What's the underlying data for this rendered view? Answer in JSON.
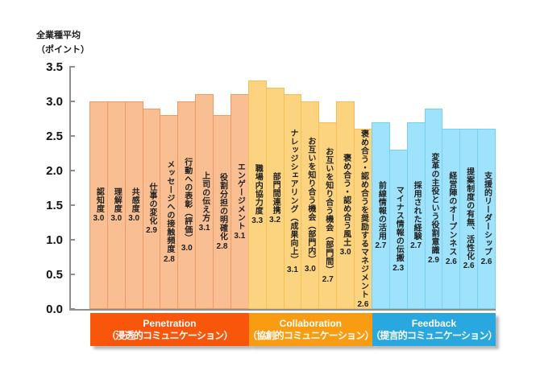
{
  "axis": {
    "title_line1": "全業種平均",
    "title_line2": "（ポイント）"
  },
  "chart_data": {
    "type": "bar",
    "ylabel": "全業種平均（ポイント）",
    "ylim": [
      0.0,
      3.5
    ],
    "yticks": [
      3.5,
      3.0,
      2.5,
      2.0,
      1.5,
      1.0,
      0.5,
      0.0
    ],
    "grid": false,
    "legend": false,
    "groups": [
      {
        "name_en": "Penetration",
        "name_ja": "（浸透的コミュニケーション）",
        "band_color": "#f8570b",
        "bar_fill": "#f9bf92",
        "bar_border": "#ef9a66",
        "bars": [
          {
            "label": "認知度",
            "value": 3.0
          },
          {
            "label": "理解度",
            "value": 3.0
          },
          {
            "label": "共感度",
            "value": 3.0
          },
          {
            "label": "仕事の変化",
            "value": 2.9
          },
          {
            "label": "メッセージへの接触頻度",
            "value": 2.8
          },
          {
            "label": "行動への表彰（評価）",
            "value": 3.0
          },
          {
            "label": "上司の伝え方",
            "value": 3.1
          },
          {
            "label": "役割分担の明確化",
            "value": 2.8
          },
          {
            "label": "エンゲージメント",
            "value": 3.1
          }
        ]
      },
      {
        "name_en": "Collaboration",
        "name_ja": "（協創的コミュニケーション）",
        "band_color": "#f99c11",
        "bar_fill": "#fcd47f",
        "bar_border": "#f6bf58",
        "bars": [
          {
            "label": "職場内協力度",
            "value": 3.3
          },
          {
            "label": "部門間連携",
            "value": 3.2
          },
          {
            "label": "ナレッジシェアリング（成果向上）",
            "value": 3.1
          },
          {
            "label": "お互いを知り合う機会（部門内）",
            "value": 3.0
          },
          {
            "label": "お互いを知り合う機会（部門間）",
            "value": 2.7
          },
          {
            "label": "褒め合う・認め合う風土",
            "value": 3.0
          },
          {
            "label": "褒め合う・認め合うを奨励するマネジメント",
            "value": 2.6
          }
        ]
      },
      {
        "name_en": "Feedback",
        "name_ja": "（提言的コミュニケーション）",
        "band_color": "#29a8e0",
        "bar_fill": "#9fe2fb",
        "bar_border": "#79cfef",
        "bars": [
          {
            "label": "前線情報の活用",
            "value": 2.7
          },
          {
            "label": "マイナス情報の伝搬",
            "value": 2.3
          },
          {
            "label": "採用された経験",
            "value": 2.7
          },
          {
            "label": "変革の主役という役割意識",
            "value": 2.9
          },
          {
            "label": "経営陣のオープンネス",
            "value": 2.6
          },
          {
            "label": "提案制度の有無、活性化",
            "value": 2.6
          },
          {
            "label": "支援的リーダーシップ",
            "value": 2.6
          }
        ]
      }
    ]
  }
}
